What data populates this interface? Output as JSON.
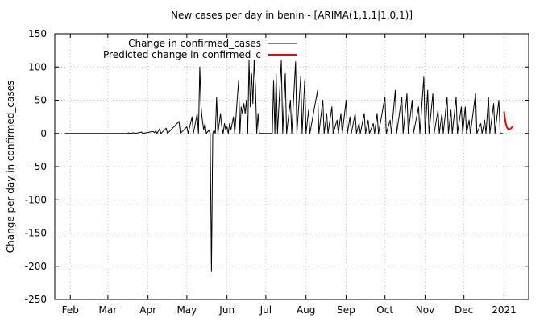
{
  "chart_data": {
    "type": "line",
    "title": "New cases per day in benin -  [ARIMA(1,1,1|1,0,1)]",
    "xlabel": "",
    "ylabel": "Change per day in confirmed_cases",
    "ylim": [
      -250,
      150
    ],
    "yticks": [
      -250,
      -200,
      -150,
      -100,
      -50,
      0,
      50,
      100,
      150
    ],
    "xlim": [
      "2020-01-20",
      "2021-01-20"
    ],
    "xticks": [
      {
        "label": "Feb",
        "date": "2020-02-01"
      },
      {
        "label": "Mar",
        "date": "2020-03-01"
      },
      {
        "label": "Apr",
        "date": "2020-04-01"
      },
      {
        "label": "May",
        "date": "2020-05-01"
      },
      {
        "label": "Jun",
        "date": "2020-06-01"
      },
      {
        "label": "Jul",
        "date": "2020-07-01"
      },
      {
        "label": "Aug",
        "date": "2020-08-01"
      },
      {
        "label": "Sep",
        "date": "2020-09-01"
      },
      {
        "label": "Oct",
        "date": "2020-10-01"
      },
      {
        "label": "Nov",
        "date": "2020-11-01"
      },
      {
        "label": "Dec",
        "date": "2020-12-01"
      },
      {
        "label": "2021",
        "date": "2021-01-01"
      }
    ],
    "grid": true,
    "legend_position": "top-left",
    "series": [
      {
        "name": "Change in confirmed_cases",
        "color": "#000000",
        "points": [
          [
            "2020-01-28",
            0
          ],
          [
            "2020-03-16",
            0
          ],
          [
            "2020-03-17",
            1
          ],
          [
            "2020-03-18",
            0
          ],
          [
            "2020-03-21",
            1
          ],
          [
            "2020-03-22",
            0
          ],
          [
            "2020-03-27",
            2
          ],
          [
            "2020-03-28",
            0
          ],
          [
            "2020-04-05",
            3
          ],
          [
            "2020-04-06",
            1
          ],
          [
            "2020-04-07",
            4
          ],
          [
            "2020-04-08",
            0
          ],
          [
            "2020-04-10",
            7
          ],
          [
            "2020-04-11",
            0
          ],
          [
            "2020-04-15",
            8
          ],
          [
            "2020-04-16",
            0
          ],
          [
            "2020-04-25",
            18
          ],
          [
            "2020-04-26",
            0
          ],
          [
            "2020-05-01",
            10
          ],
          [
            "2020-05-02",
            0
          ],
          [
            "2020-05-05",
            25
          ],
          [
            "2020-05-06",
            0
          ],
          [
            "2020-05-09",
            30
          ],
          [
            "2020-05-10",
            0
          ],
          [
            "2020-05-11",
            100
          ],
          [
            "2020-05-12",
            40
          ],
          [
            "2020-05-13",
            20
          ],
          [
            "2020-05-14",
            5
          ],
          [
            "2020-05-15",
            15
          ],
          [
            "2020-05-16",
            0
          ],
          [
            "2020-05-18",
            5
          ],
          [
            "2020-05-19",
            0
          ],
          [
            "2020-05-20",
            -208
          ],
          [
            "2020-05-21",
            0
          ],
          [
            "2020-05-22",
            5
          ],
          [
            "2020-05-23",
            0
          ],
          [
            "2020-05-24",
            55
          ],
          [
            "2020-05-25",
            0
          ],
          [
            "2020-05-27",
            30
          ],
          [
            "2020-05-28",
            10
          ],
          [
            "2020-05-29",
            0
          ],
          [
            "2020-05-30",
            15
          ],
          [
            "2020-05-31",
            5
          ],
          [
            "2020-06-01",
            10
          ],
          [
            "2020-06-02",
            0
          ],
          [
            "2020-06-03",
            15
          ],
          [
            "2020-06-04",
            5
          ],
          [
            "2020-06-06",
            25
          ],
          [
            "2020-06-07",
            0
          ],
          [
            "2020-06-10",
            80
          ],
          [
            "2020-06-11",
            0
          ],
          [
            "2020-06-12",
            40
          ],
          [
            "2020-06-13",
            30
          ],
          [
            "2020-06-14",
            45
          ],
          [
            "2020-06-15",
            30
          ],
          [
            "2020-06-16",
            50
          ],
          [
            "2020-06-17",
            0
          ],
          [
            "2020-06-18",
            110
          ],
          [
            "2020-06-19",
            40
          ],
          [
            "2020-06-20",
            90
          ],
          [
            "2020-06-21",
            45
          ],
          [
            "2020-06-22",
            110
          ],
          [
            "2020-06-23",
            70
          ],
          [
            "2020-06-24",
            0
          ],
          [
            "2020-06-25",
            30
          ],
          [
            "2020-06-26",
            0
          ],
          [
            "2020-07-06",
            0
          ],
          [
            "2020-07-07",
            80
          ],
          [
            "2020-07-08",
            0
          ],
          [
            "2020-07-09",
            90
          ],
          [
            "2020-07-10",
            0
          ],
          [
            "2020-07-13",
            110
          ],
          [
            "2020-07-14",
            0
          ],
          [
            "2020-07-16",
            90
          ],
          [
            "2020-07-17",
            0
          ],
          [
            "2020-07-20",
            50
          ],
          [
            "2020-07-21",
            0
          ],
          [
            "2020-07-24",
            108
          ],
          [
            "2020-07-25",
            0
          ],
          [
            "2020-07-28",
            86
          ],
          [
            "2020-07-29",
            0
          ],
          [
            "2020-07-31",
            80
          ],
          [
            "2020-08-01",
            0
          ],
          [
            "2020-08-03",
            35
          ],
          [
            "2020-08-04",
            0
          ],
          [
            "2020-08-10",
            65
          ],
          [
            "2020-08-11",
            0
          ],
          [
            "2020-08-14",
            50
          ],
          [
            "2020-08-15",
            0
          ],
          [
            "2020-08-17",
            30
          ],
          [
            "2020-08-18",
            0
          ],
          [
            "2020-08-21",
            40
          ],
          [
            "2020-08-22",
            0
          ],
          [
            "2020-08-25",
            20
          ],
          [
            "2020-08-26",
            0
          ],
          [
            "2020-08-28",
            30
          ],
          [
            "2020-08-29",
            0
          ],
          [
            "2020-09-01",
            50
          ],
          [
            "2020-09-02",
            0
          ],
          [
            "2020-09-04",
            25
          ],
          [
            "2020-09-05",
            0
          ],
          [
            "2020-09-08",
            30
          ],
          [
            "2020-09-09",
            0
          ],
          [
            "2020-09-11",
            15
          ],
          [
            "2020-09-12",
            0
          ],
          [
            "2020-09-15",
            30
          ],
          [
            "2020-09-16",
            0
          ],
          [
            "2020-09-18",
            20
          ],
          [
            "2020-09-19",
            0
          ],
          [
            "2020-09-22",
            15
          ],
          [
            "2020-09-23",
            0
          ],
          [
            "2020-09-25",
            30
          ],
          [
            "2020-09-26",
            0
          ],
          [
            "2020-10-01",
            55
          ],
          [
            "2020-10-02",
            0
          ],
          [
            "2020-10-05",
            20
          ],
          [
            "2020-10-06",
            0
          ],
          [
            "2020-10-09",
            65
          ],
          [
            "2020-10-10",
            0
          ],
          [
            "2020-10-14",
            55
          ],
          [
            "2020-10-15",
            0
          ],
          [
            "2020-10-18",
            60
          ],
          [
            "2020-10-19",
            0
          ],
          [
            "2020-10-22",
            50
          ],
          [
            "2020-10-23",
            0
          ],
          [
            "2020-10-27",
            40
          ],
          [
            "2020-10-28",
            0
          ],
          [
            "2020-10-31",
            85
          ],
          [
            "2020-11-01",
            0
          ],
          [
            "2020-11-03",
            65
          ],
          [
            "2020-11-04",
            0
          ],
          [
            "2020-11-07",
            60
          ],
          [
            "2020-11-08",
            0
          ],
          [
            "2020-11-11",
            35
          ],
          [
            "2020-11-12",
            0
          ],
          [
            "2020-11-14",
            30
          ],
          [
            "2020-11-15",
            0
          ],
          [
            "2020-11-18",
            55
          ],
          [
            "2020-11-19",
            0
          ],
          [
            "2020-11-21",
            35
          ],
          [
            "2020-11-22",
            0
          ],
          [
            "2020-11-25",
            55
          ],
          [
            "2020-11-26",
            0
          ],
          [
            "2020-11-29",
            40
          ],
          [
            "2020-11-30",
            0
          ],
          [
            "2020-12-02",
            40
          ],
          [
            "2020-12-03",
            0
          ],
          [
            "2020-12-05",
            20
          ],
          [
            "2020-12-06",
            0
          ],
          [
            "2020-12-10",
            60
          ],
          [
            "2020-12-11",
            0
          ],
          [
            "2020-12-14",
            15
          ],
          [
            "2020-12-15",
            0
          ],
          [
            "2020-12-17",
            20
          ],
          [
            "2020-12-18",
            0
          ],
          [
            "2020-12-20",
            55
          ],
          [
            "2020-12-21",
            0
          ],
          [
            "2020-12-24",
            45
          ],
          [
            "2020-12-25",
            0
          ],
          [
            "2020-12-28",
            50
          ],
          [
            "2020-12-29",
            0
          ],
          [
            "2020-12-31",
            0
          ]
        ]
      },
      {
        "name": "Predicted change in confirmed_c",
        "color": "#ff0000",
        "points": [
          [
            "2021-01-01",
            33
          ],
          [
            "2021-01-02",
            18
          ],
          [
            "2021-01-03",
            10
          ],
          [
            "2021-01-04",
            7
          ],
          [
            "2021-01-05",
            6
          ],
          [
            "2021-01-06",
            7
          ],
          [
            "2021-01-07",
            9
          ],
          [
            "2021-01-08",
            11
          ]
        ]
      }
    ]
  }
}
